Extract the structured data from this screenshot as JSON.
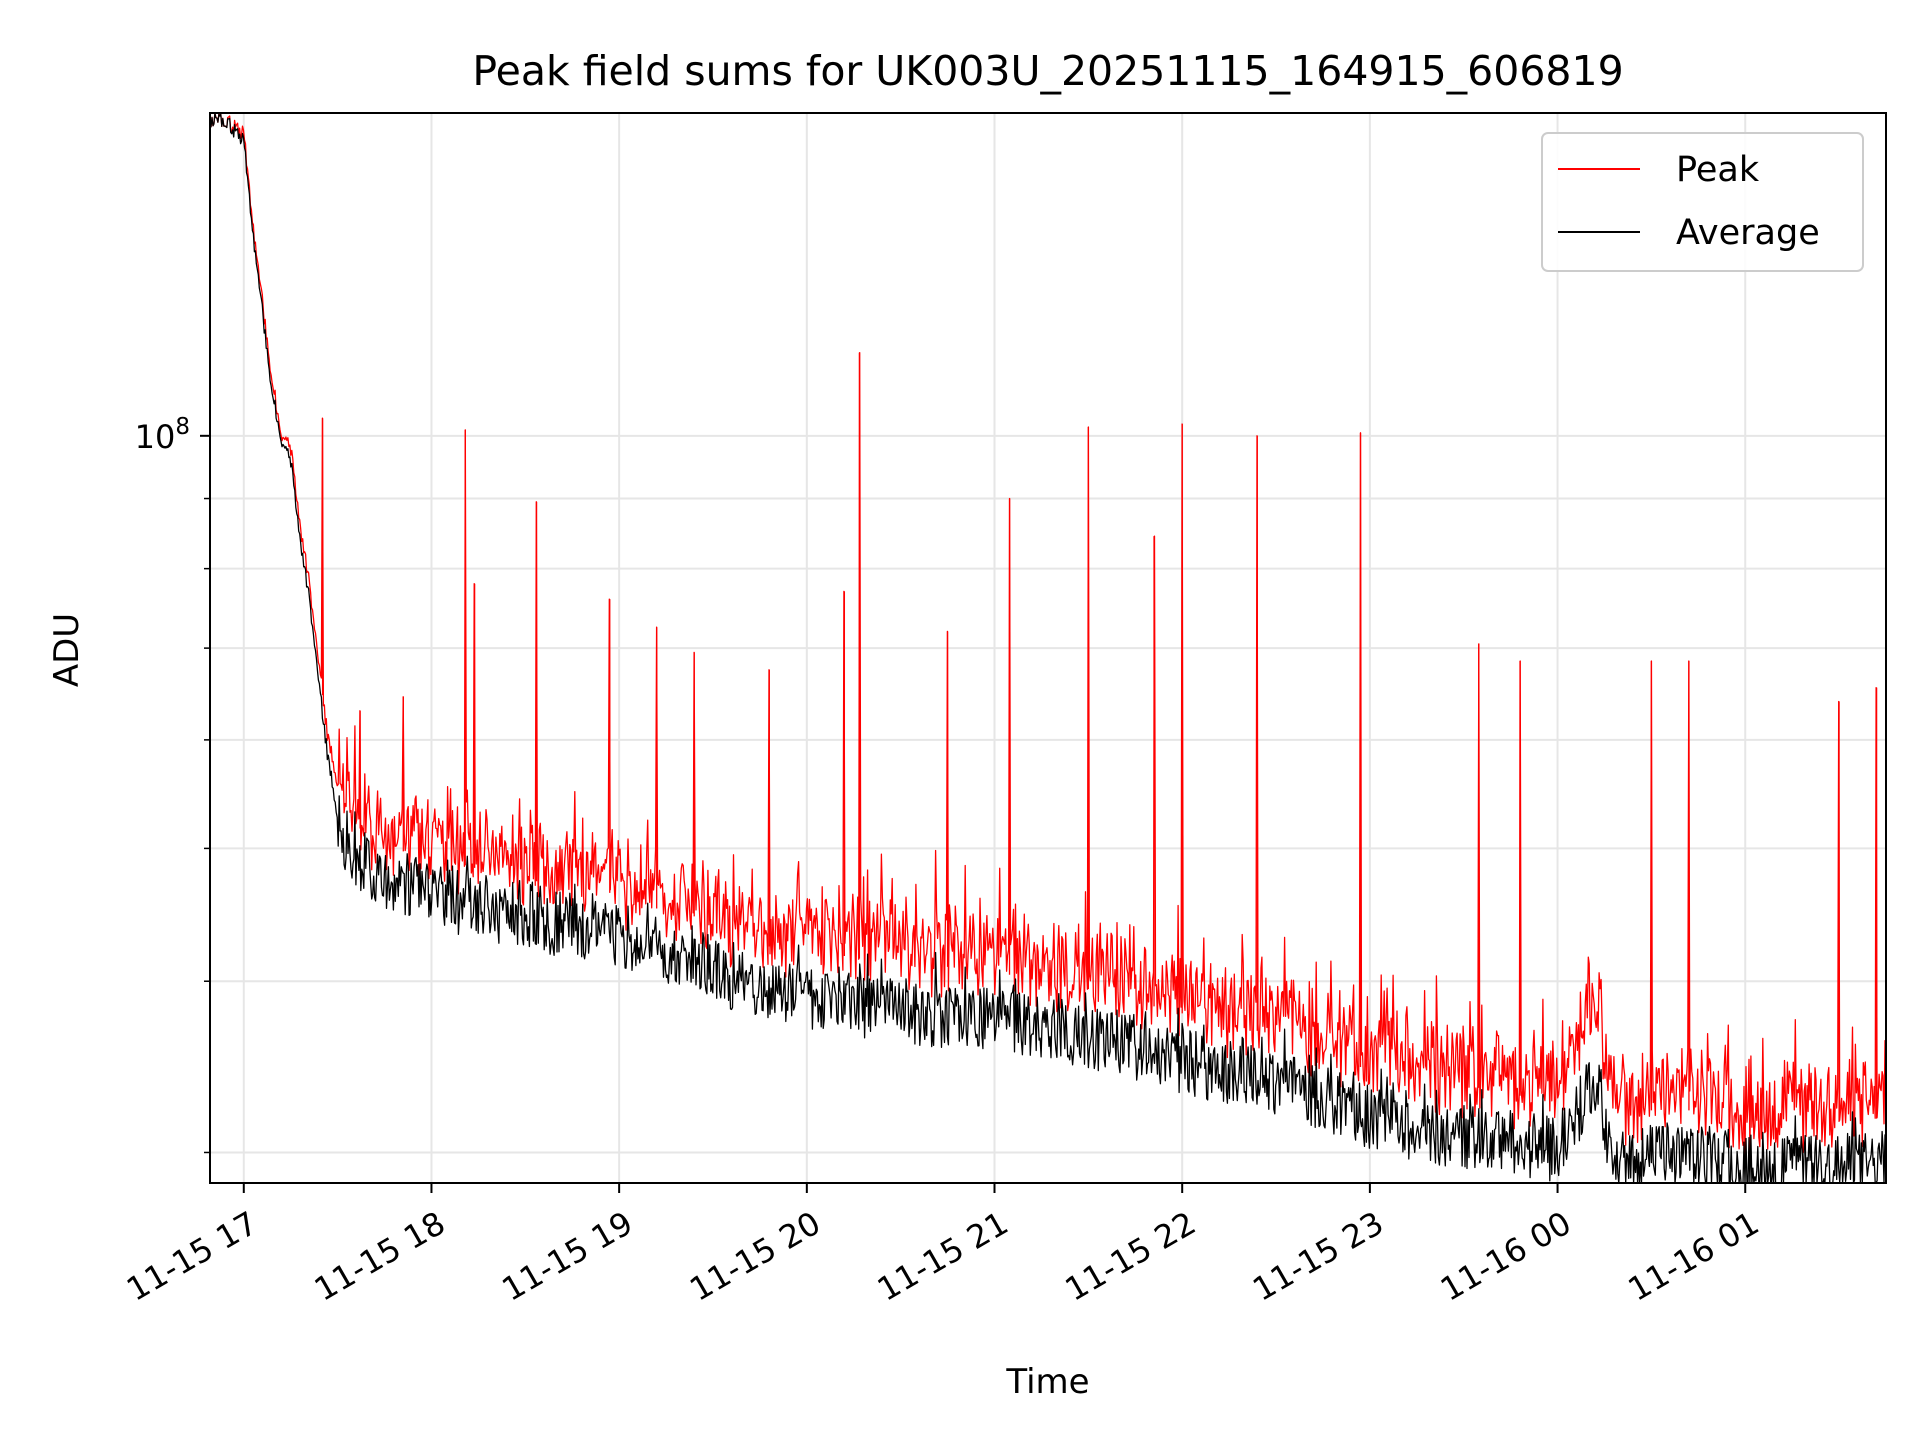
{
  "chart_data": {
    "type": "line",
    "title": "Peak field sums for UK003U_20251115_164915_606819",
    "xlabel": "Time",
    "ylabel": "ADU",
    "yscale": "log",
    "grid": true,
    "legend_position": "top-right",
    "x_unit": "hours since 2025-11-15 17:00",
    "xlim": [
      -0.18,
      8.75
    ],
    "ylim": [
      28500000,
      172000000
    ],
    "x_ticks": [
      {
        "value": 0,
        "label": "11-15 17"
      },
      {
        "value": 1,
        "label": "11-15 18"
      },
      {
        "value": 2,
        "label": "11-15 19"
      },
      {
        "value": 3,
        "label": "11-15 20"
      },
      {
        "value": 4,
        "label": "11-15 21"
      },
      {
        "value": 5,
        "label": "11-15 22"
      },
      {
        "value": 6,
        "label": "11-15 23"
      },
      {
        "value": 7,
        "label": "11-16 00"
      },
      {
        "value": 8,
        "label": "11-16 01"
      }
    ],
    "y_major_ticks": [
      {
        "value": 100000000,
        "base": "10",
        "exponent": "8"
      }
    ],
    "y_minor_ticks": [
      30000000,
      40000000,
      50000000,
      60000000,
      70000000,
      80000000,
      90000000,
      200000000
    ],
    "series": [
      {
        "name": "Peak",
        "color": "#ff0000",
        "x": [
          -0.18,
          -0.1,
          0.0,
          0.05,
          0.1,
          0.15,
          0.2,
          0.25,
          0.3,
          0.35,
          0.4,
          0.45,
          0.5,
          0.55,
          0.6,
          0.7,
          0.8,
          0.9,
          1.0,
          1.2,
          1.4,
          1.6,
          1.8,
          2.0,
          2.2,
          2.4,
          2.6,
          2.8,
          3.0,
          3.3,
          3.6,
          4.0,
          4.4,
          4.8,
          5.2,
          5.6,
          6.0,
          6.4,
          6.8,
          7.0,
          7.2,
          7.3,
          7.6,
          8.0,
          8.4,
          8.75
        ],
        "values": [
          170000000,
          170000000,
          166000000,
          142000000,
          125000000,
          110000000,
          100000000,
          98000000,
          86000000,
          78000000,
          68000000,
          60000000,
          56000000,
          54000000,
          52000000,
          50500000,
          50000000,
          49500000,
          49500000,
          48500000,
          47800000,
          47200000,
          46700000,
          46300000,
          45200000,
          44600000,
          43000000,
          42400000,
          42200000,
          41500000,
          41200000,
          40600000,
          39800000,
          38500000,
          37300000,
          36300000,
          34400000,
          33800000,
          33000000,
          32800000,
          38500000,
          31800000,
          32400000,
          31600000,
          31500000,
          31800000
        ],
        "spikes": [
          {
            "x": 0.42,
            "y": 103000000
          },
          {
            "x": 0.62,
            "y": 63000000
          },
          {
            "x": 0.85,
            "y": 64500000
          },
          {
            "x": 1.18,
            "y": 101000000
          },
          {
            "x": 1.23,
            "y": 78000000
          },
          {
            "x": 1.56,
            "y": 89500000
          },
          {
            "x": 1.95,
            "y": 76000000
          },
          {
            "x": 2.2,
            "y": 72500000
          },
          {
            "x": 2.4,
            "y": 69500000
          },
          {
            "x": 2.8,
            "y": 67500000
          },
          {
            "x": 3.2,
            "y": 77000000
          },
          {
            "x": 3.28,
            "y": 115000000
          },
          {
            "x": 3.75,
            "y": 72000000
          },
          {
            "x": 4.08,
            "y": 90000000
          },
          {
            "x": 4.5,
            "y": 101500000
          },
          {
            "x": 4.85,
            "y": 84500000
          },
          {
            "x": 5.0,
            "y": 102000000
          },
          {
            "x": 5.4,
            "y": 100000000
          },
          {
            "x": 5.95,
            "y": 100500000
          },
          {
            "x": 6.58,
            "y": 70500000
          },
          {
            "x": 6.8,
            "y": 68500000
          },
          {
            "x": 7.5,
            "y": 68500000
          },
          {
            "x": 7.7,
            "y": 68500000
          },
          {
            "x": 8.5,
            "y": 64000000
          },
          {
            "x": 8.7,
            "y": 65500000
          }
        ]
      },
      {
        "name": "Average",
        "color": "#000000",
        "x": [
          -0.18,
          -0.1,
          0.0,
          0.05,
          0.1,
          0.15,
          0.2,
          0.25,
          0.3,
          0.35,
          0.4,
          0.45,
          0.5,
          0.55,
          0.6,
          0.7,
          0.8,
          0.9,
          1.0,
          1.2,
          1.4,
          1.6,
          1.8,
          2.0,
          2.2,
          2.4,
          2.6,
          2.8,
          3.0,
          3.3,
          3.6,
          4.0,
          4.4,
          4.8,
          5.2,
          5.6,
          6.0,
          6.4,
          6.8,
          7.0,
          7.2,
          7.3,
          7.6,
          8.0,
          8.4,
          8.75
        ],
        "values": [
          170000000,
          170000000,
          164000000,
          140000000,
          123000000,
          108000000,
          99000000,
          96000000,
          84000000,
          76000000,
          66000000,
          58000000,
          53000000,
          50500000,
          49500000,
          48000000,
          47500000,
          47000000,
          46500000,
          45500000,
          45000000,
          44300000,
          43800000,
          43300000,
          42200000,
          41600000,
          40000000,
          39500000,
          39000000,
          38300000,
          38000000,
          37500000,
          36800000,
          35600000,
          34500000,
          33600000,
          31800000,
          31000000,
          30500000,
          30200000,
          34000000,
          29500000,
          30000000,
          29300000,
          29300000,
          29500000
        ]
      }
    ]
  }
}
